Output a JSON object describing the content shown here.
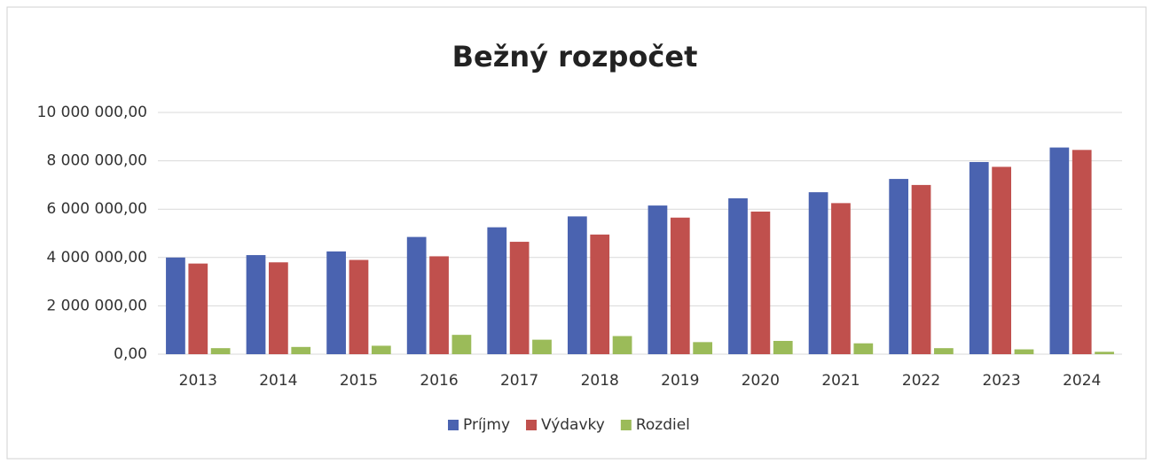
{
  "chart_data": {
    "type": "bar",
    "title": "Bežný rozpočet",
    "categories": [
      "2013",
      "2014",
      "2015",
      "2016",
      "2017",
      "2018",
      "2019",
      "2020",
      "2021",
      "2022",
      "2023",
      "2024"
    ],
    "series": [
      {
        "name": "Príjmy",
        "color": "#4a63b0",
        "values": [
          4000000,
          4100000,
          4250000,
          4850000,
          5250000,
          5700000,
          6150000,
          6450000,
          6700000,
          7250000,
          7950000,
          8550000
        ]
      },
      {
        "name": "Výdavky",
        "color": "#c0504d",
        "values": [
          3750000,
          3800000,
          3900000,
          4050000,
          4650000,
          4950000,
          5650000,
          5900000,
          6250000,
          7000000,
          7750000,
          8450000
        ]
      },
      {
        "name": "Rozdiel",
        "color": "#9bbb59",
        "values": [
          250000,
          300000,
          350000,
          800000,
          600000,
          750000,
          500000,
          550000,
          450000,
          250000,
          200000,
          100000
        ]
      }
    ],
    "ylim": [
      0,
      10000000
    ],
    "yticks": [
      {
        "value": 0,
        "label": "0,00"
      },
      {
        "value": 2000000,
        "label": "2 000 000,00"
      },
      {
        "value": 4000000,
        "label": "4 000 000,00"
      },
      {
        "value": 6000000,
        "label": "6 000 000,00"
      },
      {
        "value": 8000000,
        "label": "8 000 000,00"
      },
      {
        "value": 10000000,
        "label": "10 000 000,00"
      }
    ],
    "grid": true,
    "legend": "bottom"
  }
}
